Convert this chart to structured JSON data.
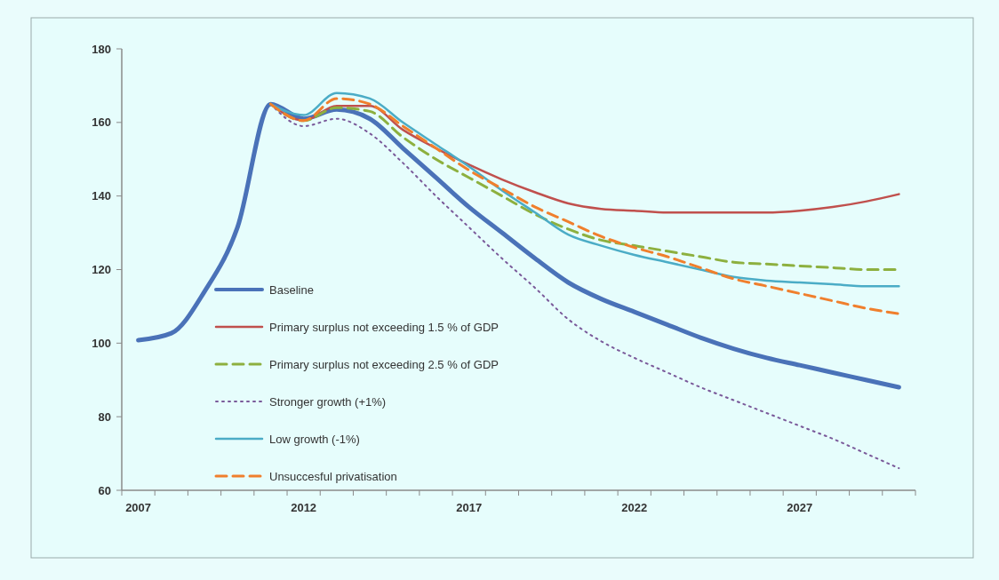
{
  "chart_data": {
    "type": "line",
    "categories": [
      "2007",
      null,
      null,
      null,
      null,
      "2012",
      null,
      null,
      null,
      null,
      "2017",
      null,
      null,
      null,
      null,
      "2022",
      null,
      null,
      null,
      null,
      "2027",
      null,
      null,
      null
    ],
    "ylim": [
      60,
      180
    ],
    "yticks": [
      60,
      80,
      100,
      120,
      140,
      160,
      180
    ],
    "grid": false,
    "legend": "bottom left",
    "marker": "none",
    "series": [
      {
        "name": "Baseline",
        "color": "#4a72b8",
        "line_style": "solid",
        "values": [
          100.8,
          102.7,
          114,
          131.5,
          165,
          161,
          163.5,
          161,
          153,
          145,
          137,
          130,
          123,
          116.5,
          112,
          108.5,
          105,
          101.5,
          98.5,
          96,
          94,
          92,
          90,
          88
        ]
      },
      {
        "name": "Primary surplus not exceeding 1.5 % of GDP",
        "color": "#c0504d",
        "line_style": "solid",
        "values": [
          null,
          null,
          null,
          null,
          165,
          160.5,
          164.5,
          164.5,
          158,
          153,
          148.5,
          144.5,
          141,
          138,
          136.5,
          136,
          135.5,
          135.5,
          135.5,
          135.5,
          136,
          137,
          138.5,
          140.5
        ]
      },
      {
        "name": "Primary surplus not exceeding 2.5 % of GDP",
        "color": "#8db03f",
        "line_style": "dashed",
        "values": [
          null,
          null,
          null,
          null,
          165,
          160.5,
          164,
          163,
          156,
          150,
          145,
          140,
          135,
          131,
          128,
          126.5,
          125,
          123.5,
          122,
          121.5,
          121,
          120.5,
          120,
          120
        ]
      },
      {
        "name": "Stronger growth (+1%)",
        "color": "#7a5a9a",
        "line_style": "dotted",
        "values": [
          null,
          null,
          null,
          null,
          165,
          159,
          161,
          157,
          149,
          140,
          131.5,
          123,
          115,
          106.5,
          100.5,
          96,
          92,
          88,
          84.5,
          81,
          77.5,
          74,
          70,
          66
        ]
      },
      {
        "name": "Low growth (-1%)",
        "color": "#4bacc6",
        "line_style": "solid",
        "values": [
          null,
          null,
          null,
          null,
          165,
          162,
          168,
          166.5,
          160,
          154,
          148,
          141.5,
          135.5,
          129.5,
          126.5,
          124,
          122,
          120,
          118,
          117,
          116.5,
          116,
          115.5,
          115.5
        ]
      },
      {
        "name": "Unsuccesful privatisation",
        "color": "#f07f2d",
        "line_style": "dashed",
        "values": [
          null,
          null,
          null,
          null,
          165,
          160.5,
          166.5,
          165,
          159,
          153,
          147,
          142,
          137,
          133,
          129,
          126,
          123.5,
          120.5,
          117.5,
          115.5,
          113.5,
          111.5,
          109.5,
          108
        ]
      }
    ]
  }
}
